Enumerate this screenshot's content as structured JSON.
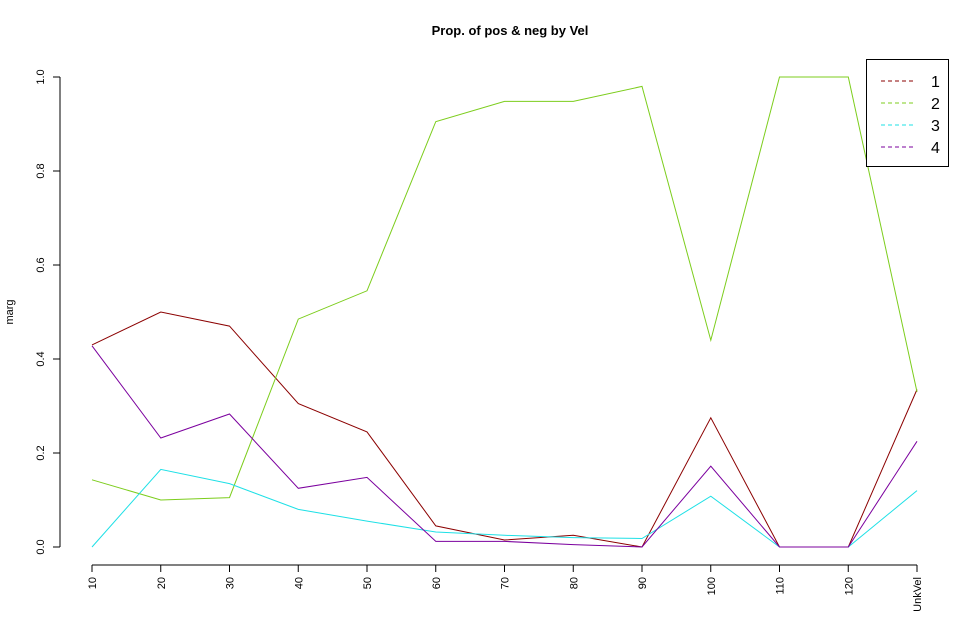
{
  "chart_data": {
    "type": "line",
    "title": "Prop. of pos & neg by Vel",
    "xlabel": "",
    "ylabel": "marg",
    "categories": [
      "10",
      "20",
      "30",
      "40",
      "50",
      "60",
      "70",
      "80",
      "90",
      "100",
      "110",
      "120",
      "UnkVel"
    ],
    "ylim": [
      0,
      1
    ],
    "yticks": [
      "0.0",
      "0.2",
      "0.4",
      "0.6",
      "0.8",
      "1.0"
    ],
    "grid": false,
    "legend_position": "top-right",
    "series": [
      {
        "name": "1",
        "color": "#8b0000",
        "values": [
          0.43,
          0.5,
          0.47,
          0.305,
          0.245,
          0.045,
          0.015,
          0.025,
          0.0,
          0.275,
          0.0,
          0.0,
          0.335
        ]
      },
      {
        "name": "2",
        "color": "#7ccd1c",
        "values": [
          0.143,
          0.1,
          0.105,
          0.485,
          0.545,
          0.905,
          0.948,
          0.948,
          0.98,
          0.44,
          1.0,
          1.0,
          0.33
        ]
      },
      {
        "name": "3",
        "color": "#1ee0e6",
        "values": [
          0.0,
          0.165,
          0.135,
          0.08,
          0.055,
          0.032,
          0.025,
          0.02,
          0.018,
          0.108,
          0.0,
          0.0,
          0.12
        ]
      },
      {
        "name": "4",
        "color": "#7b009e",
        "values": [
          0.428,
          0.232,
          0.283,
          0.125,
          0.148,
          0.012,
          0.012,
          0.005,
          0.0,
          0.172,
          0.0,
          0.0,
          0.225
        ]
      }
    ]
  }
}
